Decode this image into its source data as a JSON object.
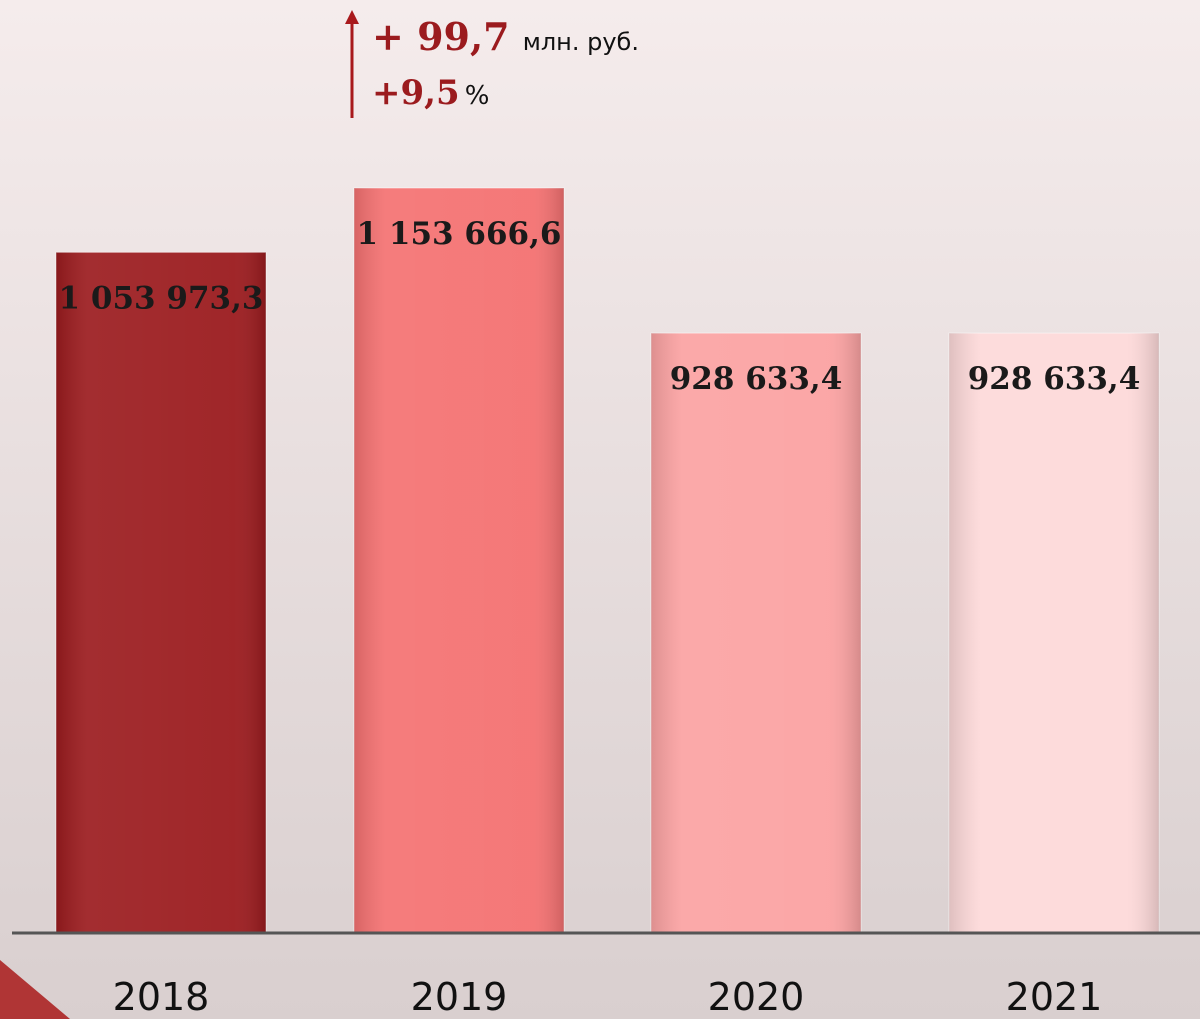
{
  "chart_data": {
    "type": "bar",
    "categories": [
      "2018",
      "2019",
      "2020",
      "2021"
    ],
    "values": [
      1053973.3,
      1153666.6,
      928633.4,
      928633.4
    ],
    "value_labels": [
      "1 053 973,3",
      "1 153 666,6",
      "928 633,4",
      "928 633,4"
    ],
    "colors": [
      "#9b1b1e",
      "#f47171",
      "#fba2a2",
      "#fdd9d9"
    ],
    "annotation": {
      "increase": "+ 99,7",
      "unit": "млн. руб.",
      "percent": "+9,5",
      "percent_sign": "%"
    }
  }
}
